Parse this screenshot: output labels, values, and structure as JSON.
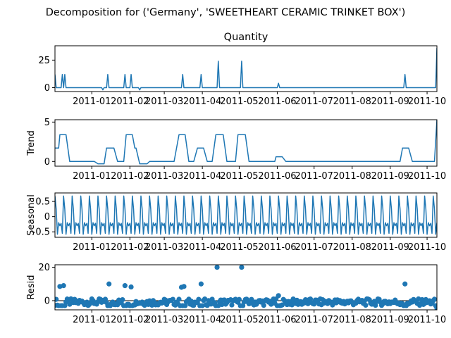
{
  "figure": {
    "title": "Decomposition for ('Germany', 'SWEETHEART CERAMIC TRINKET BOX')"
  },
  "colors": {
    "line": "#1f77b4",
    "marker": "#1f77b4",
    "axis": "#000000",
    "zero_line": "#000000"
  },
  "x_axis": {
    "start": "2010-12-02",
    "end": "2011-10-09",
    "tick_labels": [
      "2011-01",
      "2011-02",
      "2011-03",
      "2011-04",
      "2011-05",
      "2011-06",
      "2011-07",
      "2011-08",
      "2011-09",
      "2011-10"
    ],
    "tick_dates": [
      "2011-01-01",
      "2011-02-01",
      "2011-03-01",
      "2011-04-01",
      "2011-05-01",
      "2011-06-01",
      "2011-07-01",
      "2011-08-01",
      "2011-09-01",
      "2011-10-01"
    ]
  },
  "chart_data": [
    {
      "type": "line",
      "title": "Quantity",
      "ylabel": "",
      "ylim": [
        -3.5,
        38
      ],
      "yticks": [
        0,
        25
      ],
      "spikes": [
        {
          "x": "2010-12-02",
          "y": 12
        },
        {
          "x": "2010-12-08",
          "y": 12
        },
        {
          "x": "2010-12-10",
          "y": 12
        },
        {
          "x": "2011-01-14",
          "y": 12
        },
        {
          "x": "2011-01-28",
          "y": 12
        },
        {
          "x": "2011-02-02",
          "y": 12
        },
        {
          "x": "2011-03-16",
          "y": 12
        },
        {
          "x": "2011-03-31",
          "y": 12
        },
        {
          "x": "2011-04-14",
          "y": 24
        },
        {
          "x": "2011-05-03",
          "y": 24
        },
        {
          "x": "2011-06-02",
          "y": 4
        },
        {
          "x": "2011-09-13",
          "y": 12
        },
        {
          "x": "2011-10-09",
          "y": 36
        }
      ],
      "dips": [
        {
          "x": "2011-01-10",
          "y": -2
        },
        {
          "x": "2011-02-09",
          "y": -2
        }
      ]
    },
    {
      "type": "line",
      "title": "",
      "ylabel": "Trend",
      "ylim": [
        -0.6,
        5.3
      ],
      "yticks": [
        0,
        5
      ],
      "segments": [
        {
          "from": "2010-12-02",
          "to": "2010-12-05",
          "y": 1.7
        },
        {
          "from": "2010-12-06",
          "to": "2010-12-11",
          "y": 3.4
        },
        {
          "from": "2010-12-14",
          "to": "2011-01-03",
          "y": 0
        },
        {
          "from": "2011-01-06",
          "to": "2011-01-11",
          "y": -0.3
        },
        {
          "from": "2011-01-13",
          "to": "2011-01-19",
          "y": 1.7
        },
        {
          "from": "2011-01-22",
          "to": "2011-01-27",
          "y": 0
        },
        {
          "from": "2011-01-29",
          "to": "2011-02-03",
          "y": 3.4
        },
        {
          "from": "2011-02-05",
          "to": "2011-02-06",
          "y": 1.7
        },
        {
          "from": "2011-02-09",
          "to": "2011-02-15",
          "y": -0.3
        },
        {
          "from": "2011-02-17",
          "to": "2011-03-09",
          "y": 0
        },
        {
          "from": "2011-03-13",
          "to": "2011-03-18",
          "y": 3.4
        },
        {
          "from": "2011-03-21",
          "to": "2011-03-25",
          "y": 0
        },
        {
          "from": "2011-03-28",
          "to": "2011-04-02",
          "y": 1.7
        },
        {
          "from": "2011-04-05",
          "to": "2011-04-09",
          "y": 0
        },
        {
          "from": "2011-04-12",
          "to": "2011-04-18",
          "y": 3.4
        },
        {
          "from": "2011-04-21",
          "to": "2011-04-28",
          "y": 0
        },
        {
          "from": "2011-04-30",
          "to": "2011-05-06",
          "y": 3.4
        },
        {
          "from": "2011-05-09",
          "to": "2011-05-30",
          "y": 0
        },
        {
          "from": "2011-05-31",
          "to": "2011-06-05",
          "y": 0.6
        },
        {
          "from": "2011-06-08",
          "to": "2011-09-09",
          "y": 0
        },
        {
          "from": "2011-09-11",
          "to": "2011-09-16",
          "y": 1.7
        },
        {
          "from": "2011-09-19",
          "to": "2011-10-07",
          "y": 0
        },
        {
          "from": "2011-10-09",
          "to": "2011-10-09",
          "y": 5.3
        }
      ]
    },
    {
      "type": "line",
      "title": "",
      "ylabel": "Seasonal",
      "ylim": [
        -0.68,
        0.78
      ],
      "yticks": [
        -0.5,
        0.0,
        0.5
      ],
      "period_days": 7,
      "weekly_pattern": [
        0.68,
        0.25,
        -0.58,
        -0.2,
        -0.3,
        -0.22,
        -0.55
      ]
    },
    {
      "type": "scatter",
      "title": "",
      "ylabel": "Resid",
      "ylim": [
        -5.5,
        21.5
      ],
      "yticks": [
        0,
        20
      ],
      "outliers": [
        {
          "x": "2010-12-06",
          "y": 8.5
        },
        {
          "x": "2010-12-09",
          "y": 9
        },
        {
          "x": "2011-01-15",
          "y": 10
        },
        {
          "x": "2011-01-28",
          "y": 9
        },
        {
          "x": "2011-02-02",
          "y": 8.2
        },
        {
          "x": "2011-03-15",
          "y": 8
        },
        {
          "x": "2011-03-17",
          "y": 8.5
        },
        {
          "x": "2011-03-31",
          "y": 10
        },
        {
          "x": "2011-04-13",
          "y": 20
        },
        {
          "x": "2011-05-03",
          "y": 20
        },
        {
          "x": "2011-06-02",
          "y": 3
        },
        {
          "x": "2011-09-13",
          "y": 10
        },
        {
          "x": "2011-10-09",
          "y": -4.5
        }
      ],
      "baseline_band": [
        -3.5,
        1.5
      ]
    }
  ]
}
